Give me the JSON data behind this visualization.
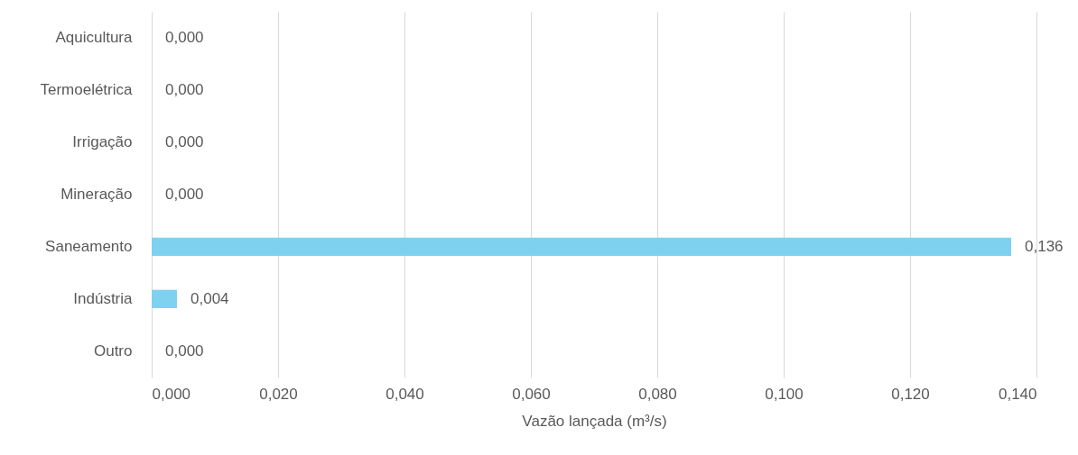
{
  "chart_data": {
    "type": "bar",
    "orientation": "horizontal",
    "xlabel": "Vazão lançada (m³/s)",
    "categories": [
      "Aquicultura",
      "Termoelétrica",
      "Irrigação",
      "Mineração",
      "Saneamento",
      "Indústria",
      "Outro"
    ],
    "values": [
      0,
      0,
      0,
      0,
      0.136,
      0.004,
      0
    ],
    "value_labels": [
      "0,000",
      "0,000",
      "0,000",
      "0,000",
      "0,136",
      "0,004",
      "0,000"
    ],
    "color": "#7fd1f0",
    "xlim": [
      0,
      0.14
    ],
    "xticks": [
      {
        "value": 0,
        "label": "0,000"
      },
      {
        "value": 0.02,
        "label": "0,020"
      },
      {
        "value": 0.04,
        "label": "0,040"
      },
      {
        "value": 0.06,
        "label": "0,060"
      },
      {
        "value": 0.08,
        "label": "0,080"
      },
      {
        "value": 0.1,
        "label": "0,100"
      },
      {
        "value": 0.12,
        "label": "0,120"
      },
      {
        "value": 0.14,
        "label": "0,140"
      }
    ],
    "grid": "x"
  }
}
